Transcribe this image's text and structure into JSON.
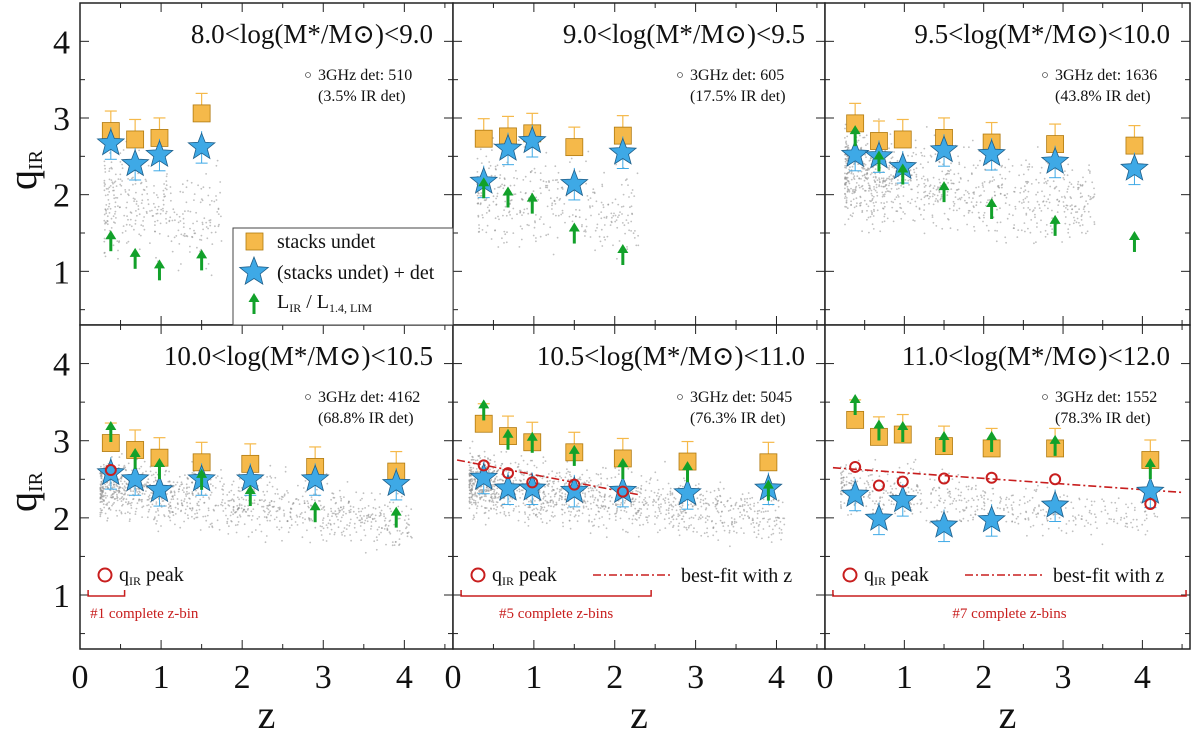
{
  "chart_data": {
    "type": "scatter",
    "xlabel": "z",
    "ylabel_main": "q",
    "ylabel_sub": "IR",
    "xlim": [
      0,
      4.6
    ],
    "ylim": [
      0.3,
      4.5
    ],
    "x_ticks": [
      "0",
      "1",
      "2",
      "3",
      "4"
    ],
    "y_ticks": [
      "1",
      "2",
      "3",
      "4"
    ],
    "colors": {
      "square": "#f5b94a",
      "star": "#3ea9e6",
      "arrow": "#12a12a",
      "peak": "#c81e1e",
      "fit": "#c81e1e",
      "cloud": "#8c8c8c"
    },
    "legend_left": {
      "stacks": "stacks undet",
      "combined": "(stacks undet) + det",
      "limit_main": "L",
      "limit_sub1": "IR",
      "limit_mid": " / L",
      "limit_sub2": "1.4, LIM"
    },
    "panels": [
      {
        "title": "8.0<log(M*/M⊙)<9.0",
        "det_count": "3GHz det: 510",
        "ir_frac": "(3.5% IR det)",
        "cloud": {
          "x0": 0.3,
          "x1": 1.75,
          "y_lo": 1.15,
          "y_hi": 2.65,
          "n": 320
        },
        "stacks": [
          {
            "z": 0.38,
            "q": 2.83
          },
          {
            "z": 0.68,
            "q": 2.72
          },
          {
            "z": 0.98,
            "q": 2.74
          },
          {
            "z": 1.5,
            "q": 3.06
          }
        ],
        "combined": [
          {
            "z": 0.38,
            "q": 2.67
          },
          {
            "z": 0.68,
            "q": 2.4
          },
          {
            "z": 0.98,
            "q": 2.52
          },
          {
            "z": 1.5,
            "q": 2.62
          }
        ],
        "limits": [
          {
            "z": 0.38,
            "q": 1.38
          },
          {
            "z": 0.68,
            "q": 1.15
          },
          {
            "z": 0.98,
            "q": 1.0
          },
          {
            "z": 1.5,
            "q": 1.13
          }
        ],
        "peak": [],
        "fit": null,
        "peak_label": "",
        "fit_label": "",
        "complete_note": "",
        "complete_range": null
      },
      {
        "title": "9.0<log(M*/M⊙)<9.5",
        "det_count": "3GHz det: 605",
        "ir_frac": "(17.5% IR det)",
        "cloud": {
          "x0": 0.3,
          "x1": 2.3,
          "y_lo": 1.25,
          "y_hi": 2.75,
          "n": 360
        },
        "stacks": [
          {
            "z": 0.38,
            "q": 2.73
          },
          {
            "z": 0.68,
            "q": 2.76
          },
          {
            "z": 0.98,
            "q": 2.8
          },
          {
            "z": 1.5,
            "q": 2.62
          },
          {
            "z": 2.1,
            "q": 2.77
          }
        ],
        "combined": [
          {
            "z": 0.38,
            "q": 2.17
          },
          {
            "z": 0.68,
            "q": 2.6
          },
          {
            "z": 0.98,
            "q": 2.7
          },
          {
            "z": 1.5,
            "q": 2.14
          },
          {
            "z": 2.1,
            "q": 2.55
          }
        ],
        "limits": [
          {
            "z": 0.38,
            "q": 2.07
          },
          {
            "z": 0.68,
            "q": 1.95
          },
          {
            "z": 0.98,
            "q": 1.87
          },
          {
            "z": 1.5,
            "q": 1.48
          },
          {
            "z": 2.1,
            "q": 1.2
          }
        ],
        "peak": [],
        "fit": null,
        "peak_label": "",
        "fit_label": "",
        "complete_note": "",
        "complete_range": null
      },
      {
        "title": "9.5<log(M*/M⊙)<10.0",
        "det_count": "3GHz det: 1636",
        "ir_frac": "(43.8% IR det)",
        "cloud": {
          "x0": 0.25,
          "x1": 3.4,
          "y_lo": 1.6,
          "y_hi": 2.9,
          "n": 900
        },
        "stacks": [
          {
            "z": 0.38,
            "q": 2.93
          },
          {
            "z": 0.68,
            "q": 2.7
          },
          {
            "z": 0.98,
            "q": 2.72
          },
          {
            "z": 1.5,
            "q": 2.74
          },
          {
            "z": 2.1,
            "q": 2.68
          },
          {
            "z": 2.9,
            "q": 2.66
          },
          {
            "z": 3.9,
            "q": 2.64
          }
        ],
        "combined": [
          {
            "z": 0.38,
            "q": 2.52
          },
          {
            "z": 0.68,
            "q": 2.5
          },
          {
            "z": 0.98,
            "q": 2.36
          },
          {
            "z": 1.5,
            "q": 2.58
          },
          {
            "z": 2.1,
            "q": 2.53
          },
          {
            "z": 2.9,
            "q": 2.43
          },
          {
            "z": 3.9,
            "q": 2.34
          }
        ],
        "limits": [
          {
            "z": 0.38,
            "q": 2.75
          },
          {
            "z": 0.68,
            "q": 2.42
          },
          {
            "z": 0.98,
            "q": 2.25
          },
          {
            "z": 1.5,
            "q": 2.02
          },
          {
            "z": 2.1,
            "q": 1.8
          },
          {
            "z": 2.9,
            "q": 1.58
          },
          {
            "z": 3.9,
            "q": 1.37
          }
        ],
        "peak": [],
        "fit": null,
        "peak_label": "",
        "fit_label": "",
        "complete_note": "",
        "complete_range": null
      },
      {
        "title": "10.0<log(M*/M⊙)<10.5",
        "det_count": "3GHz det: 4162",
        "ir_frac": "(68.8% IR det)",
        "cloud": {
          "x0": 0.25,
          "x1": 4.1,
          "y_lo": 1.95,
          "y_hi": 2.85,
          "n": 1100
        },
        "stacks": [
          {
            "z": 0.38,
            "q": 2.97
          },
          {
            "z": 0.68,
            "q": 2.88
          },
          {
            "z": 0.98,
            "q": 2.78
          },
          {
            "z": 1.5,
            "q": 2.72
          },
          {
            "z": 2.1,
            "q": 2.7
          },
          {
            "z": 2.9,
            "q": 2.66
          },
          {
            "z": 3.9,
            "q": 2.6
          }
        ],
        "combined": [
          {
            "z": 0.38,
            "q": 2.58
          },
          {
            "z": 0.68,
            "q": 2.5
          },
          {
            "z": 0.98,
            "q": 2.36
          },
          {
            "z": 1.5,
            "q": 2.5
          },
          {
            "z": 2.1,
            "q": 2.5
          },
          {
            "z": 2.9,
            "q": 2.5
          },
          {
            "z": 3.9,
            "q": 2.44
          }
        ],
        "limits": [
          {
            "z": 0.38,
            "q": 3.1
          },
          {
            "z": 0.68,
            "q": 2.75
          },
          {
            "z": 0.98,
            "q": 2.62
          },
          {
            "z": 1.5,
            "q": 2.48
          },
          {
            "z": 2.1,
            "q": 2.27
          },
          {
            "z": 2.9,
            "q": 2.06
          },
          {
            "z": 3.9,
            "q": 1.99
          }
        ],
        "peak": [
          {
            "z": 0.38,
            "q": 2.62
          }
        ],
        "fit": null,
        "peak_label": "q",
        "peak_label_sub": "IR",
        "peak_label_tail": " peak",
        "fit_label": "",
        "complete_note": "#1 complete z-bin",
        "complete_range": [
          0.1,
          0.55
        ]
      },
      {
        "title": "10.5<log(M*/M⊙)<11.0",
        "det_count": "3GHz det: 5045",
        "ir_frac": "(76.3% IR det)",
        "cloud": {
          "x0": 0.2,
          "x1": 4.1,
          "y_lo": 2.0,
          "y_hi": 2.9,
          "n": 1300
        },
        "stacks": [
          {
            "z": 0.38,
            "q": 3.22
          },
          {
            "z": 0.68,
            "q": 3.06
          },
          {
            "z": 0.98,
            "q": 2.98
          },
          {
            "z": 1.5,
            "q": 2.85
          },
          {
            "z": 2.1,
            "q": 2.77
          },
          {
            "z": 2.9,
            "q": 2.73
          },
          {
            "z": 3.9,
            "q": 2.72
          }
        ],
        "combined": [
          {
            "z": 0.38,
            "q": 2.52
          },
          {
            "z": 0.68,
            "q": 2.38
          },
          {
            "z": 0.98,
            "q": 2.38
          },
          {
            "z": 1.5,
            "q": 2.35
          },
          {
            "z": 2.1,
            "q": 2.35
          },
          {
            "z": 2.9,
            "q": 2.32
          },
          {
            "z": 3.9,
            "q": 2.38
          }
        ],
        "limits": [
          {
            "z": 0.38,
            "q": 3.38
          },
          {
            "z": 0.68,
            "q": 3.0
          },
          {
            "z": 0.98,
            "q": 2.96
          },
          {
            "z": 1.5,
            "q": 2.79
          },
          {
            "z": 2.1,
            "q": 2.62
          },
          {
            "z": 2.9,
            "q": 2.58
          },
          {
            "z": 3.9,
            "q": 2.34
          }
        ],
        "peak": [
          {
            "z": 0.38,
            "q": 2.68
          },
          {
            "z": 0.68,
            "q": 2.58
          },
          {
            "z": 0.98,
            "q": 2.46
          },
          {
            "z": 1.5,
            "q": 2.43
          },
          {
            "z": 2.1,
            "q": 2.34
          }
        ],
        "fit": {
          "z0": 0.05,
          "z1": 2.3,
          "q0": 2.75,
          "q1": 2.3
        },
        "peak_label": "q",
        "peak_label_sub": "IR",
        "peak_label_tail": " peak",
        "fit_label": "best-fit with z",
        "complete_note": "#5 complete z-bins",
        "complete_range": [
          0.1,
          2.45
        ]
      },
      {
        "title": "11.0<log(M*/M⊙)<12.0",
        "det_count": "3GHz det: 1552",
        "ir_frac": "(78.3% IR det)",
        "cloud": {
          "x0": 0.2,
          "x1": 4.2,
          "y_lo": 2.05,
          "y_hi": 2.8,
          "n": 500
        },
        "stacks": [
          {
            "z": 0.38,
            "q": 3.27
          },
          {
            "z": 0.68,
            "q": 3.05
          },
          {
            "z": 0.98,
            "q": 3.08
          },
          {
            "z": 1.5,
            "q": 2.93
          },
          {
            "z": 2.1,
            "q": 2.9
          },
          {
            "z": 2.9,
            "q": 2.9
          },
          {
            "z": 4.1,
            "q": 2.75
          }
        ],
        "combined": [
          {
            "z": 0.38,
            "q": 2.3
          },
          {
            "z": 0.68,
            "q": 1.99
          },
          {
            "z": 0.98,
            "q": 2.23
          },
          {
            "z": 1.5,
            "q": 1.9
          },
          {
            "z": 2.1,
            "q": 1.97
          },
          {
            "z": 2.9,
            "q": 2.16
          },
          {
            "z": 4.1,
            "q": 2.34
          }
        ],
        "limits": [
          {
            "z": 0.38,
            "q": 3.45
          },
          {
            "z": 0.68,
            "q": 3.12
          },
          {
            "z": 0.98,
            "q": 3.1
          },
          {
            "z": 1.5,
            "q": 2.97
          },
          {
            "z": 2.1,
            "q": 2.97
          },
          {
            "z": 2.9,
            "q": 2.92
          },
          {
            "z": 4.1,
            "q": 2.62
          }
        ],
        "peak": [
          {
            "z": 0.38,
            "q": 2.66
          },
          {
            "z": 0.68,
            "q": 2.42
          },
          {
            "z": 0.98,
            "q": 2.47
          },
          {
            "z": 1.5,
            "q": 2.51
          },
          {
            "z": 2.1,
            "q": 2.52
          },
          {
            "z": 2.9,
            "q": 2.5
          },
          {
            "z": 4.1,
            "q": 2.18
          }
        ],
        "fit": {
          "z0": 0.1,
          "z1": 4.5,
          "q0": 2.65,
          "q1": 2.33
        },
        "peak_label": "q",
        "peak_label_sub": "IR",
        "peak_label_tail": " peak",
        "fit_label": "best-fit with z",
        "complete_note": "#7 complete z-bins",
        "complete_range": [
          0.1,
          4.55
        ]
      }
    ]
  }
}
